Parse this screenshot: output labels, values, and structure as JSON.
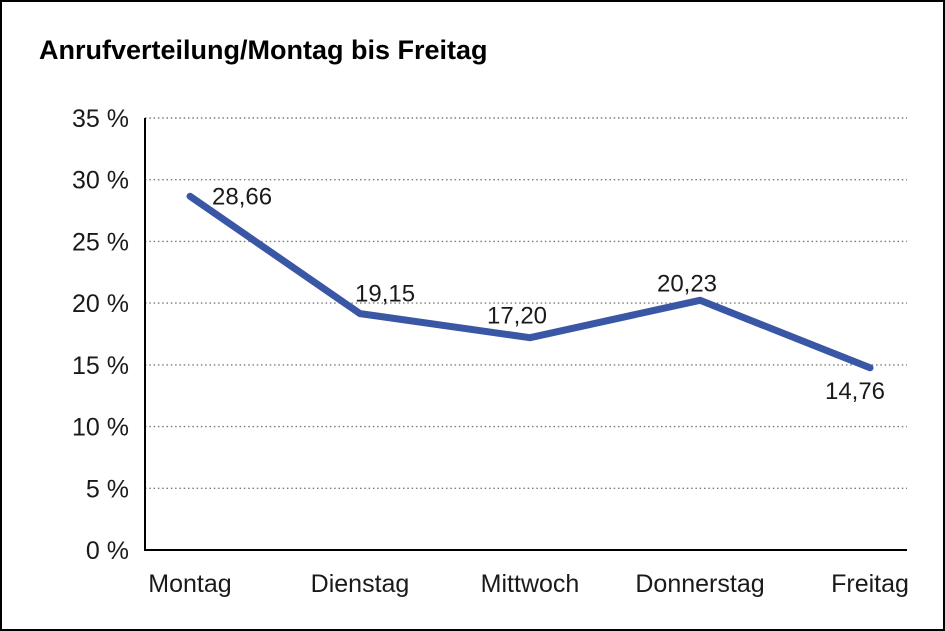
{
  "chart_data": {
    "type": "line",
    "title": "Anrufverteilung/Montag bis Freitag",
    "categories": [
      "Montag",
      "Dienstag",
      "Mittwoch",
      "Donnerstag",
      "Freitag"
    ],
    "series": [
      {
        "name": "Anrufverteilung",
        "values": [
          28.66,
          19.15,
          17.2,
          20.23,
          14.76
        ],
        "value_labels": [
          "28,66",
          "19,15",
          "17,20",
          "20,23",
          "14,76"
        ]
      }
    ],
    "xlabel": "",
    "ylabel": "",
    "ylim": [
      0,
      35
    ],
    "y_tick_step": 5,
    "y_tick_labels": [
      "0 %",
      "5 %",
      "10 %",
      "15 %",
      "20 %",
      "25 %",
      "30 %",
      "35 %"
    ],
    "grid": "horizontal-dotted",
    "legend": "none",
    "colors": {
      "line": "#3A57A6",
      "axis": "#000000",
      "gridline": "#7a7a7a",
      "text": "#1a1a1a",
      "background": "#ffffff",
      "border": "#000000"
    }
  }
}
